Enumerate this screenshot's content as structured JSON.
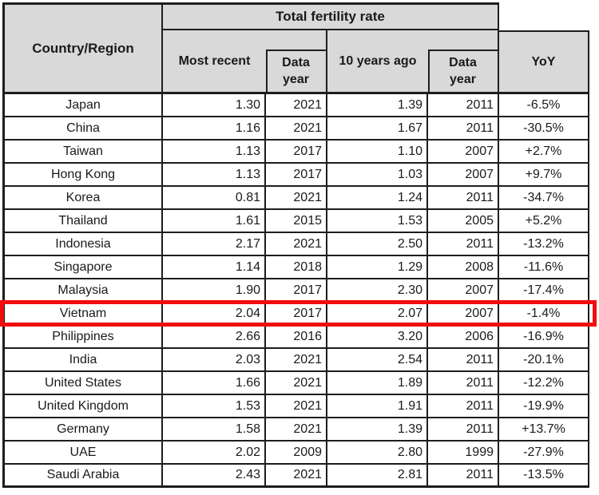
{
  "chart_data": {
    "type": "table",
    "group_header": "Total fertility rate",
    "columns": {
      "country": "Country/Region",
      "most_recent": "Most recent",
      "data_year_recent": "Data year",
      "ten_years_ago": "10 years ago",
      "data_year_old": "Data year",
      "yoy": "YoY"
    },
    "rows": [
      {
        "country": "Japan",
        "most_recent": "1.30",
        "data_year_recent": "2021",
        "ten_years_ago": "1.39",
        "data_year_old": "2011",
        "yoy": "-6.5%"
      },
      {
        "country": "China",
        "most_recent": "1.16",
        "data_year_recent": "2021",
        "ten_years_ago": "1.67",
        "data_year_old": "2011",
        "yoy": "-30.5%"
      },
      {
        "country": "Taiwan",
        "most_recent": "1.13",
        "data_year_recent": "2017",
        "ten_years_ago": "1.10",
        "data_year_old": "2007",
        "yoy": "+2.7%"
      },
      {
        "country": "Hong Kong",
        "most_recent": "1.13",
        "data_year_recent": "2017",
        "ten_years_ago": "1.03",
        "data_year_old": "2007",
        "yoy": "+9.7%"
      },
      {
        "country": "Korea",
        "most_recent": "0.81",
        "data_year_recent": "2021",
        "ten_years_ago": "1.24",
        "data_year_old": "2011",
        "yoy": "-34.7%"
      },
      {
        "country": "Thailand",
        "most_recent": "1.61",
        "data_year_recent": "2015",
        "ten_years_ago": "1.53",
        "data_year_old": "2005",
        "yoy": "+5.2%"
      },
      {
        "country": "Indonesia",
        "most_recent": "2.17",
        "data_year_recent": "2021",
        "ten_years_ago": "2.50",
        "data_year_old": "2011",
        "yoy": "-13.2%"
      },
      {
        "country": "Singapore",
        "most_recent": "1.14",
        "data_year_recent": "2018",
        "ten_years_ago": "1.29",
        "data_year_old": "2008",
        "yoy": "-11.6%"
      },
      {
        "country": "Malaysia",
        "most_recent": "1.90",
        "data_year_recent": "2017",
        "ten_years_ago": "2.30",
        "data_year_old": "2007",
        "yoy": "-17.4%"
      },
      {
        "country": "Vietnam",
        "most_recent": "2.04",
        "data_year_recent": "2017",
        "ten_years_ago": "2.07",
        "data_year_old": "2007",
        "yoy": "-1.4%"
      },
      {
        "country": "Philippines",
        "most_recent": "2.66",
        "data_year_recent": "2016",
        "ten_years_ago": "3.20",
        "data_year_old": "2006",
        "yoy": "-16.9%"
      },
      {
        "country": "India",
        "most_recent": "2.03",
        "data_year_recent": "2021",
        "ten_years_ago": "2.54",
        "data_year_old": "2011",
        "yoy": "-20.1%"
      },
      {
        "country": "United States",
        "most_recent": "1.66",
        "data_year_recent": "2021",
        "ten_years_ago": "1.89",
        "data_year_old": "2011",
        "yoy": "-12.2%"
      },
      {
        "country": "United Kingdom",
        "most_recent": "1.53",
        "data_year_recent": "2021",
        "ten_years_ago": "1.91",
        "data_year_old": "2011",
        "yoy": "-19.9%"
      },
      {
        "country": "Germany",
        "most_recent": "1.58",
        "data_year_recent": "2021",
        "ten_years_ago": "1.39",
        "data_year_old": "2011",
        "yoy": "+13.7%"
      },
      {
        "country": "UAE",
        "most_recent": "2.02",
        "data_year_recent": "2009",
        "ten_years_ago": "2.80",
        "data_year_old": "1999",
        "yoy": "-27.9%"
      },
      {
        "country": "Saudi Arabia",
        "most_recent": "2.43",
        "data_year_recent": "2021",
        "ten_years_ago": "2.81",
        "data_year_old": "2011",
        "yoy": "-13.5%"
      }
    ],
    "highlighted_row": "Vietnam",
    "layout_hints": {
      "header_rows": 2,
      "grid": "all-borders",
      "highlight_style": "red-rectangle-outline"
    }
  },
  "style": {
    "header_fill": "#D9D9D9",
    "border_color": "#1D1D1D",
    "highlight_color": "#F20D0D",
    "text_color": "#1A1A1A"
  }
}
